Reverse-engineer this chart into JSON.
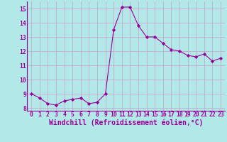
{
  "x": [
    0,
    1,
    2,
    3,
    4,
    5,
    6,
    7,
    8,
    9,
    10,
    11,
    12,
    13,
    14,
    15,
    16,
    17,
    18,
    19,
    20,
    21,
    22,
    23
  ],
  "y": [
    9.0,
    8.7,
    8.3,
    8.2,
    8.5,
    8.6,
    8.7,
    8.3,
    8.4,
    9.0,
    13.5,
    15.1,
    15.1,
    13.8,
    13.0,
    13.0,
    12.55,
    12.1,
    12.0,
    11.7,
    11.6,
    11.8,
    11.3,
    11.5
  ],
  "line_color": "#990099",
  "marker": "D",
  "marker_size": 2.2,
  "background_color": "#b2e8e8",
  "grid_color": "#c8a0c8",
  "xlabel": "Windchill (Refroidissement éolien,°C)",
  "xlabel_color": "#990099",
  "xlim": [
    -0.5,
    23.5
  ],
  "ylim": [
    7.8,
    15.5
  ],
  "yticks": [
    8,
    9,
    10,
    11,
    12,
    13,
    14,
    15
  ],
  "xticks": [
    0,
    1,
    2,
    3,
    4,
    5,
    6,
    7,
    8,
    9,
    10,
    11,
    12,
    13,
    14,
    15,
    16,
    17,
    18,
    19,
    20,
    21,
    22,
    23
  ],
  "tick_color": "#990099",
  "tick_fontsize": 5.8,
  "xlabel_fontsize": 7.0,
  "axis_line_color": "#990099"
}
